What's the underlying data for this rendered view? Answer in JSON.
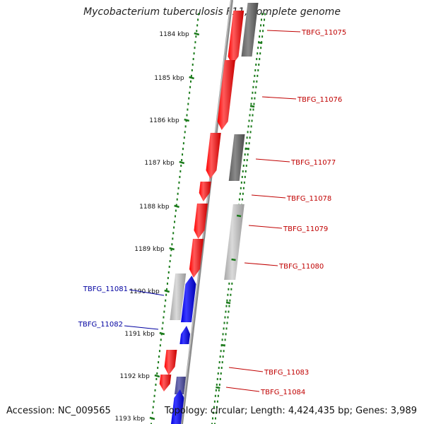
{
  "title": "Mycobacterium tuberculosis F11, complete genome",
  "footer": {
    "accession": "Accession: NC_009565",
    "summary": "Topology: circular; Length: 4,424,435 bp; Genes: 3,989"
  },
  "scale_labels": [
    "1184 kbp",
    "1185 kbp",
    "1186 kbp",
    "1187 kbp",
    "1188 kbp",
    "1189 kbp",
    "1190 kbp",
    "1191 kbp",
    "1192 kbp",
    "1193 kbp"
  ],
  "colors": {
    "forward_gene": "#ff0000",
    "reverse_gene": "#0000ff",
    "rna_gene": "#5050a0",
    "other_feature": "#808080",
    "scale_ticks": "#1a7a1a",
    "forward_label": "#c00000",
    "reverse_label": "#0000a0"
  },
  "gene_labels": [
    {
      "name": "TBFG_11075",
      "strand": "forward"
    },
    {
      "name": "TBFG_11076",
      "strand": "forward"
    },
    {
      "name": "TBFG_11077",
      "strand": "forward"
    },
    {
      "name": "TBFG_11078",
      "strand": "forward"
    },
    {
      "name": "TBFG_11079",
      "strand": "forward"
    },
    {
      "name": "TBFG_11080",
      "strand": "forward"
    },
    {
      "name": "TBFG_11081",
      "strand": "reverse"
    },
    {
      "name": "TBFG_11082",
      "strand": "reverse"
    },
    {
      "name": "TBFG_11083",
      "strand": "forward"
    },
    {
      "name": "TBFG_11084",
      "strand": "forward"
    }
  ]
}
